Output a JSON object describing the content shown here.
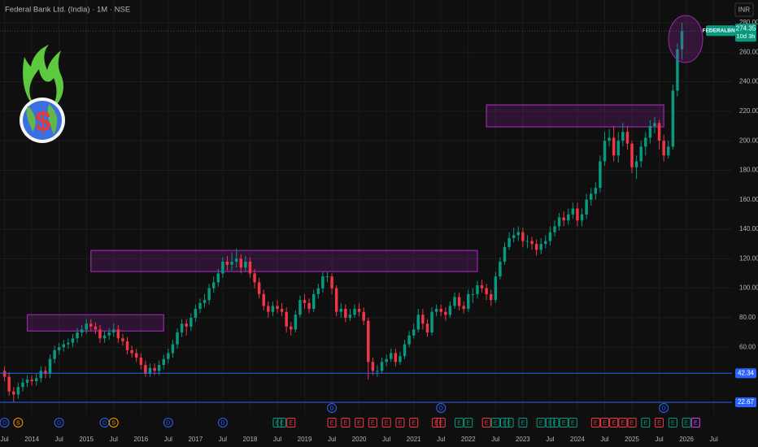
{
  "chart_data": {
    "type": "candlestick",
    "title": "Federal Bank Ltd. (India) · 1M · NSE",
    "currency": "INR",
    "symbol": "FEDERALBNK",
    "countdown": "10d 3h",
    "up_color": "#089981",
    "down_color": "#f23645",
    "zone_color": "#9c27b0",
    "x": [
      "2013-07",
      "2013-08",
      "2013-09",
      "2013-10",
      "2013-11",
      "2013-12",
      "2014-01",
      "2014-02",
      "2014-03",
      "2014-04",
      "2014-05",
      "2014-06",
      "2014-07",
      "2014-08",
      "2014-09",
      "2014-10",
      "2014-11",
      "2014-12",
      "2015-01",
      "2015-02",
      "2015-03",
      "2015-04",
      "2015-05",
      "2015-06",
      "2015-07",
      "2015-08",
      "2015-09",
      "2015-10",
      "2015-11",
      "2015-12",
      "2016-01",
      "2016-02",
      "2016-03",
      "2016-04",
      "2016-05",
      "2016-06",
      "2016-07",
      "2016-08",
      "2016-09",
      "2016-10",
      "2016-11",
      "2016-12",
      "2017-01",
      "2017-02",
      "2017-03",
      "2017-04",
      "2017-05",
      "2017-06",
      "2017-07",
      "2017-08",
      "2017-09",
      "2017-10",
      "2017-11",
      "2017-12",
      "2018-01",
      "2018-02",
      "2018-03",
      "2018-04",
      "2018-05",
      "2018-06",
      "2018-07",
      "2018-08",
      "2018-09",
      "2018-10",
      "2018-11",
      "2018-12",
      "2019-01",
      "2019-02",
      "2019-03",
      "2019-04",
      "2019-05",
      "2019-06",
      "2019-07",
      "2019-08",
      "2019-09",
      "2019-10",
      "2019-11",
      "2019-12",
      "2020-01",
      "2020-02",
      "2020-03",
      "2020-04",
      "2020-05",
      "2020-06",
      "2020-07",
      "2020-08",
      "2020-09",
      "2020-10",
      "2020-11",
      "2020-12",
      "2021-01",
      "2021-02",
      "2021-03",
      "2021-04",
      "2021-05",
      "2021-06",
      "2021-07",
      "2021-08",
      "2021-09",
      "2021-10",
      "2021-11",
      "2021-12",
      "2022-01",
      "2022-02",
      "2022-03",
      "2022-04",
      "2022-05",
      "2022-06",
      "2022-07",
      "2022-08",
      "2022-09",
      "2022-10",
      "2022-11",
      "2022-12",
      "2023-01",
      "2023-02",
      "2023-03",
      "2023-04",
      "2023-05",
      "2023-06",
      "2023-07",
      "2023-08",
      "2023-09",
      "2023-10",
      "2023-11",
      "2023-12",
      "2024-01",
      "2024-02",
      "2024-03",
      "2024-04",
      "2024-05",
      "2024-06",
      "2024-07",
      "2024-08",
      "2024-09",
      "2024-10",
      "2024-11",
      "2024-12",
      "2025-01",
      "2025-02",
      "2025-03",
      "2025-04",
      "2025-05",
      "2025-06",
      "2025-07",
      "2025-08",
      "2025-09",
      "2025-10",
      "2025-11",
      "2025-12"
    ],
    "open": [
      44,
      40,
      30,
      28,
      33,
      36,
      38,
      37,
      39,
      44,
      42,
      52,
      58,
      60,
      62,
      63,
      66,
      70,
      72,
      76,
      74,
      72,
      66,
      68,
      70,
      72,
      66,
      64,
      58,
      56,
      53,
      48,
      42,
      46,
      44,
      48,
      52,
      56,
      62,
      70,
      76,
      74,
      80,
      86,
      90,
      92,
      100,
      104,
      110,
      118,
      116,
      118,
      120,
      114,
      118,
      110,
      104,
      96,
      88,
      84,
      88,
      86,
      84,
      74,
      72,
      82,
      92,
      90,
      86,
      96,
      100,
      108,
      108,
      100,
      84,
      86,
      80,
      82,
      86,
      84,
      78,
      50,
      44,
      44,
      50,
      52,
      56,
      50,
      54,
      62,
      68,
      72,
      82,
      76,
      70,
      84,
      86,
      84,
      82,
      88,
      94,
      88,
      86,
      96,
      96,
      102,
      100,
      96,
      92,
      108,
      118,
      128,
      134,
      136,
      138,
      132,
      132,
      130,
      126,
      130,
      132,
      138,
      142,
      148,
      146,
      150,
      154,
      146,
      150,
      160,
      164,
      168,
      186,
      200,
      202,
      190,
      200,
      206,
      198,
      182,
      186,
      196,
      202,
      210,
      212,
      200,
      190,
      196,
      234,
      262
    ],
    "high": [
      47,
      43,
      33,
      36,
      39,
      41,
      41,
      42,
      47,
      47,
      55,
      61,
      63,
      65,
      66,
      69,
      73,
      75,
      79,
      79,
      77,
      75,
      71,
      73,
      76,
      75,
      69,
      67,
      61,
      59,
      56,
      51,
      49,
      49,
      51,
      55,
      59,
      65,
      73,
      79,
      79,
      83,
      89,
      93,
      96,
      103,
      108,
      113,
      121,
      122,
      124,
      127,
      123,
      122,
      121,
      113,
      107,
      99,
      91,
      91,
      92,
      90,
      87,
      77,
      85,
      95,
      96,
      93,
      99,
      103,
      111,
      111,
      110,
      102,
      90,
      89,
      86,
      89,
      90,
      87,
      80,
      53,
      48,
      53,
      55,
      59,
      59,
      57,
      65,
      71,
      76,
      86,
      86,
      79,
      87,
      89,
      89,
      87,
      91,
      97,
      97,
      91,
      99,
      100,
      105,
      106,
      103,
      99,
      111,
      121,
      131,
      138,
      141,
      142,
      141,
      136,
      135,
      133,
      134,
      136,
      142,
      146,
      151,
      152,
      154,
      158,
      158,
      154,
      164,
      168,
      172,
      190,
      206,
      208,
      210,
      206,
      212,
      210,
      200,
      190,
      200,
      206,
      214,
      216,
      214,
      204,
      200,
      238,
      266,
      280
    ],
    "low": [
      37,
      27,
      22.67,
      25,
      30,
      33,
      34,
      34,
      36,
      39,
      39,
      49,
      55,
      57,
      59,
      60,
      63,
      67,
      69,
      71,
      69,
      63,
      63,
      65,
      67,
      63,
      61,
      55,
      53,
      50,
      45,
      40,
      40,
      41,
      41,
      45,
      49,
      53,
      59,
      67,
      68,
      71,
      77,
      83,
      87,
      89,
      97,
      101,
      107,
      112,
      112,
      114,
      110,
      111,
      107,
      100,
      93,
      85,
      80,
      81,
      83,
      81,
      70,
      68,
      70,
      80,
      86,
      83,
      84,
      93,
      97,
      104,
      96,
      81,
      80,
      77,
      78,
      80,
      81,
      75,
      38,
      41,
      40,
      42,
      47,
      50,
      47,
      48,
      52,
      60,
      66,
      70,
      72,
      67,
      68,
      81,
      81,
      78,
      80,
      86,
      85,
      83,
      84,
      90,
      93,
      97,
      92,
      88,
      90,
      106,
      116,
      126,
      131,
      132,
      128,
      127,
      126,
      122,
      123,
      127,
      129,
      135,
      139,
      142,
      143,
      147,
      142,
      142,
      147,
      156,
      160,
      165,
      183,
      196,
      186,
      185,
      196,
      194,
      178,
      174,
      182,
      190,
      198,
      205,
      194,
      186,
      188,
      194,
      230,
      255
    ],
    "close": [
      40,
      30,
      28,
      33,
      36,
      38,
      37,
      39,
      44,
      42,
      52,
      58,
      60,
      62,
      63,
      66,
      70,
      72,
      76,
      74,
      72,
      66,
      68,
      70,
      72,
      66,
      64,
      58,
      56,
      53,
      48,
      42,
      46,
      44,
      48,
      52,
      56,
      62,
      70,
      76,
      74,
      80,
      86,
      90,
      92,
      100,
      104,
      110,
      118,
      116,
      118,
      120,
      114,
      118,
      110,
      104,
      96,
      88,
      84,
      88,
      86,
      84,
      74,
      72,
      82,
      92,
      90,
      86,
      96,
      100,
      108,
      108,
      100,
      84,
      86,
      80,
      82,
      86,
      84,
      78,
      50,
      44,
      44,
      50,
      52,
      56,
      50,
      54,
      62,
      68,
      72,
      82,
      76,
      70,
      84,
      86,
      84,
      82,
      88,
      94,
      88,
      86,
      96,
      96,
      102,
      100,
      96,
      92,
      108,
      118,
      128,
      134,
      136,
      138,
      132,
      132,
      130,
      126,
      130,
      132,
      138,
      142,
      148,
      146,
      150,
      154,
      146,
      150,
      160,
      164,
      168,
      186,
      200,
      202,
      190,
      200,
      206,
      198,
      182,
      186,
      196,
      202,
      210,
      212,
      200,
      190,
      196,
      234,
      262,
      274.35
    ],
    "xlim": [
      "2013-06",
      "2026-11"
    ],
    "xticks": [
      {
        "value": "2013-07",
        "label": "Jul"
      },
      {
        "value": "2014-01",
        "label": "2014"
      },
      {
        "value": "2014-07",
        "label": "Jul"
      },
      {
        "value": "2015-01",
        "label": "2015"
      },
      {
        "value": "2015-07",
        "label": "Jul"
      },
      {
        "value": "2016-01",
        "label": "2016"
      },
      {
        "value": "2016-07",
        "label": "Jul"
      },
      {
        "value": "2017-01",
        "label": "2017"
      },
      {
        "value": "2017-07",
        "label": "Jul"
      },
      {
        "value": "2018-01",
        "label": "2018"
      },
      {
        "value": "2018-07",
        "label": "Jul"
      },
      {
        "value": "2019-01",
        "label": "2019"
      },
      {
        "value": "2019-07",
        "label": "Jul"
      },
      {
        "value": "2020-01",
        "label": "2020"
      },
      {
        "value": "2020-07",
        "label": "Jul"
      },
      {
        "value": "2021-01",
        "label": "2021"
      },
      {
        "value": "2021-07",
        "label": "Jul"
      },
      {
        "value": "2022-01",
        "label": "2022"
      },
      {
        "value": "2022-07",
        "label": "Jul"
      },
      {
        "value": "2023-01",
        "label": "2023"
      },
      {
        "value": "2023-07",
        "label": "Jul"
      },
      {
        "value": "2024-01",
        "label": "2024"
      },
      {
        "value": "2024-07",
        "label": "Jul"
      },
      {
        "value": "2025-01",
        "label": "2025"
      },
      {
        "value": "2025-07",
        "label": "Jul"
      },
      {
        "value": "2026-01",
        "label": "2026"
      },
      {
        "value": "2026-07",
        "label": "Jul"
      }
    ],
    "ylim": [
      14.4,
      295.4
    ],
    "yticks": [
      {
        "value": 60,
        "label": "60.00"
      },
      {
        "value": 80,
        "label": "80.00"
      },
      {
        "value": 100,
        "label": "100.00"
      },
      {
        "value": 120,
        "label": "120.00"
      },
      {
        "value": 140,
        "label": "140.00"
      },
      {
        "value": 160,
        "label": "160.00"
      },
      {
        "value": 180,
        "label": "180.00"
      },
      {
        "value": 200,
        "label": "200.00"
      },
      {
        "value": 220,
        "label": "220.00"
      },
      {
        "value": 240,
        "label": "240.00"
      },
      {
        "value": 260,
        "label": "260.00"
      },
      {
        "value": 280,
        "label": "280.00"
      }
    ],
    "grid": true,
    "hlines": [
      {
        "value": 42.34,
        "color": "#2962ff"
      },
      {
        "value": 22.67,
        "color": "#2962ff"
      }
    ],
    "zones": [
      {
        "start": "2013-12",
        "end": "2016-06",
        "low": 71,
        "high": 82
      },
      {
        "start": "2015-02",
        "end": "2022-03",
        "low": 111.3,
        "high": 125.6
      },
      {
        "start": "2022-05",
        "end": "2025-08",
        "low": 209.4,
        "high": 224.3
      }
    ],
    "events": [
      {
        "date": "2013-07",
        "label": "D",
        "color": "#2962ff"
      },
      {
        "date": "2013-10",
        "label": "S",
        "color": "#ff9800"
      },
      {
        "date": "2014-07",
        "label": "D",
        "color": "#2962ff"
      },
      {
        "date": "2015-05",
        "label": "D",
        "color": "#2962ff"
      },
      {
        "date": "2015-07",
        "label": "S",
        "color": "#ff9800"
      },
      {
        "date": "2016-07",
        "label": "D",
        "color": "#2962ff"
      },
      {
        "date": "2017-07",
        "label": "D",
        "color": "#2962ff"
      },
      {
        "date": "2018-07",
        "label": "E",
        "color": "#089981"
      },
      {
        "date": "2018-08",
        "label": "E",
        "color": "#089981"
      },
      {
        "date": "2018-10",
        "label": "E",
        "color": "#f23645"
      },
      {
        "date": "2019-07",
        "label": "E",
        "color": "#f23645"
      },
      {
        "date": "2019-07",
        "label": "D",
        "color": "#2962ff"
      },
      {
        "date": "2019-10",
        "label": "E",
        "color": "#f23645"
      },
      {
        "date": "2020-01",
        "label": "E",
        "color": "#f23645"
      },
      {
        "date": "2020-04",
        "label": "E",
        "color": "#f23645"
      },
      {
        "date": "2020-07",
        "label": "E",
        "color": "#f23645"
      },
      {
        "date": "2020-10",
        "label": "E",
        "color": "#f23645"
      },
      {
        "date": "2021-01",
        "label": "E",
        "color": "#f23645"
      },
      {
        "date": "2021-06",
        "label": "E",
        "color": "#f23645"
      },
      {
        "date": "2021-07",
        "label": "E",
        "color": "#f23645"
      },
      {
        "date": "2021-07",
        "label": "D",
        "color": "#2962ff"
      },
      {
        "date": "2021-11",
        "label": "E",
        "color": "#089981"
      },
      {
        "date": "2022-01",
        "label": "E",
        "color": "#089981"
      },
      {
        "date": "2022-05",
        "label": "E",
        "color": "#f23645"
      },
      {
        "date": "2022-07",
        "label": "E",
        "color": "#089981"
      },
      {
        "date": "2022-09",
        "label": "E",
        "color": "#089981"
      },
      {
        "date": "2022-10",
        "label": "E",
        "color": "#089981"
      },
      {
        "date": "2023-01",
        "label": "E",
        "color": "#089981"
      },
      {
        "date": "2023-05",
        "label": "E",
        "color": "#089981"
      },
      {
        "date": "2023-07",
        "label": "E",
        "color": "#089981"
      },
      {
        "date": "2023-08",
        "label": "E",
        "color": "#089981"
      },
      {
        "date": "2023-10",
        "label": "E",
        "color": "#089981"
      },
      {
        "date": "2023-12",
        "label": "E",
        "color": "#089981"
      },
      {
        "date": "2024-05",
        "label": "E",
        "color": "#f23645"
      },
      {
        "date": "2024-07",
        "label": "E",
        "color": "#f23645"
      },
      {
        "date": "2024-09",
        "label": "E",
        "color": "#f23645"
      },
      {
        "date": "2024-11",
        "label": "E",
        "color": "#f23645"
      },
      {
        "date": "2025-01",
        "label": "E",
        "color": "#f23645"
      },
      {
        "date": "2025-04",
        "label": "E",
        "color": "#089981"
      },
      {
        "date": "2025-07",
        "label": "E",
        "color": "#f23645"
      },
      {
        "date": "2025-08",
        "label": "D",
        "color": "#2962ff"
      },
      {
        "date": "2025-10",
        "label": "E",
        "color": "#089981"
      },
      {
        "date": "2026-01",
        "label": "E",
        "color": "#089981"
      },
      {
        "date": "2026-03",
        "label": "E",
        "color": "#e040fb"
      }
    ]
  }
}
